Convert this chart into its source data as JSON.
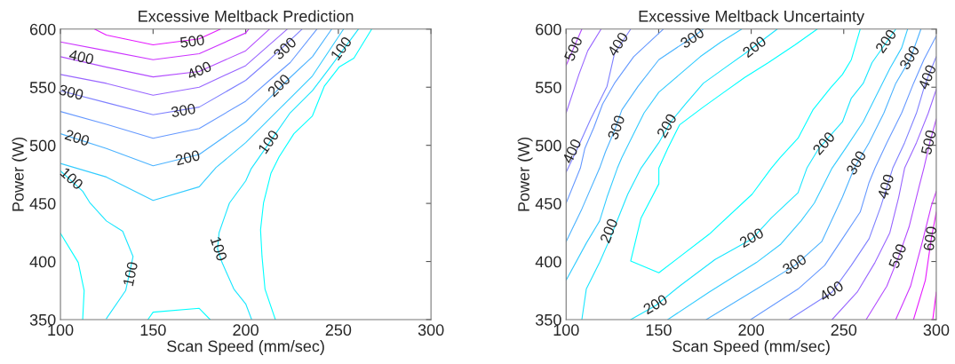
{
  "chart_data": [
    {
      "type": "line",
      "title": "Excessive Meltback Prediction",
      "xlabel": "Scan Speed (mm/sec)",
      "ylabel": "Power (W)",
      "xlim": [
        100,
        300
      ],
      "xticks": [
        100,
        150,
        200,
        250,
        300
      ],
      "ylim": [
        350,
        600
      ],
      "yticks": [
        350,
        400,
        450,
        500,
        550,
        600
      ],
      "series": [
        {
          "color": "#e619ff",
          "x": [
            118.4,
            124.8,
            150,
            174.9,
            186.4
          ],
          "values": [
            600,
            594.9,
            586.5,
            591.6,
            600
          ]
        },
        {
          "color": "#cc33ff",
          "x": [
            100,
            124.8,
            150,
            174.9,
            200,
            201.6
          ],
          "values": [
            589,
            581.4,
            573.7,
            578.8,
            596.7,
            600
          ]
        },
        {
          "color": "#b34cff",
          "x": [
            100,
            124.8,
            150,
            174.9,
            200,
            212.8
          ],
          "values": [
            576.3,
            567.3,
            558.9,
            563.5,
            581.4,
            600
          ]
        },
        {
          "color": "#9966ff",
          "x": [
            100,
            124.8,
            150,
            174.9,
            200,
            222.4
          ],
          "values": [
            561,
            553.3,
            543.1,
            550,
            568.6,
            600
          ]
        },
        {
          "color": "#7f80ff",
          "x": [
            100,
            124.8,
            150,
            174.9,
            200,
            212.8,
            230.4
          ],
          "values": [
            546.9,
            536.7,
            526.3,
            532.9,
            555.9,
            573.7,
            600
          ]
        },
        {
          "color": "#6699ff",
          "x": [
            100,
            124.8,
            150,
            174.9,
            200,
            212.8,
            224,
            238.4
          ],
          "values": [
            529.1,
            518.1,
            506.1,
            514.5,
            538,
            555.9,
            571.2,
            600
          ]
        },
        {
          "color": "#4cb3ff",
          "x": [
            100,
            124.8,
            150,
            174.9,
            200,
            212.8,
            224,
            236,
            246.4
          ],
          "values": [
            510,
            497.2,
            482.4,
            492.1,
            520.2,
            540.6,
            558.4,
            576.3,
            600
          ]
        },
        {
          "color": "#33ccff",
          "x": [
            100,
            124.8,
            150,
            174.9,
            184,
            200,
            212.8,
            224,
            236,
            252.8
          ],
          "values": [
            484.4,
            472.7,
            452.6,
            464.3,
            480.9,
            502.3,
            522.7,
            540.6,
            559.7,
            600
          ]
        },
        {
          "color": "#19e6ff",
          "x": [
            203.2,
            200,
            193.6,
            187.2,
            184.8,
            185.6,
            191.2,
            200,
            203,
            212.8,
            224,
            236,
            246,
            260.8
          ],
          "values": [
            350,
            363.5,
            376.3,
            399.2,
            410.7,
            424.7,
            450.3,
            469.4,
            480,
            502.3,
            528,
            547,
            568,
            600
          ]
        },
        {
          "color": "#19e6ff",
          "x": [
            100,
            112,
            116,
            124.8,
            133.6,
            139.2,
            135.2,
            124.8
          ],
          "values": [
            478,
            460.5,
            450.3,
            434.9,
            426,
            404.3,
            375,
            350.8
          ]
        },
        {
          "color": "#00ffff",
          "x": [
            216,
            210.4,
            208.8,
            208,
            209.6,
            213.6,
            218,
            226,
            236,
            242.4,
            250.4,
            258.4,
            268
          ],
          "values": [
            350,
            376.3,
            404.3,
            427.3,
            450.3,
            475.8,
            490,
            510,
            525.3,
            550.8,
            567.3,
            575,
            600
          ]
        },
        {
          "color": "#00ffff",
          "x": [
            100,
            109.6,
            112.8,
            112
          ],
          "values": [
            424.2,
            399.2,
            375,
            350
          ]
        },
        {
          "color": "#00ffff",
          "x": [
            147.2,
            150,
            174.9,
            180.8
          ],
          "values": [
            350,
            356.4,
            359.7,
            350
          ]
        }
      ],
      "annotations": [
        {
          "text": "500",
          "x": 171.2,
          "y": 588.5
        },
        {
          "text": "400",
          "x": 111.2,
          "y": 575
        },
        {
          "text": "400",
          "x": 175.2,
          "y": 563.5
        },
        {
          "text": "300",
          "x": 105.6,
          "y": 544.6
        },
        {
          "text": "300",
          "x": 166.4,
          "y": 529
        },
        {
          "text": "300",
          "x": 221.6,
          "y": 582.7
        },
        {
          "text": "200",
          "x": 108.8,
          "y": 505.5
        },
        {
          "text": "200",
          "x": 168.8,
          "y": 488.3
        },
        {
          "text": "200",
          "x": 218.4,
          "y": 550.8
        },
        {
          "text": "100",
          "x": 252,
          "y": 582.7
        },
        {
          "text": "100",
          "x": 212.8,
          "y": 502.3
        },
        {
          "text": "100",
          "x": 105.6,
          "y": 470.7
        },
        {
          "text": "100",
          "x": 138.4,
          "y": 389
        },
        {
          "text": "100",
          "x": 184.8,
          "y": 410.7
        }
      ]
    },
    {
      "type": "line",
      "title": "Excessive Meltback Uncertainty",
      "xlabel": "Scan Speed (mm/sec)",
      "ylabel": "Power (W)",
      "xlim": [
        100,
        300
      ],
      "xticks": [
        100,
        150,
        200,
        250,
        300
      ],
      "ylim": [
        350,
        600
      ],
      "yticks": [
        350,
        400,
        450,
        500,
        550,
        600
      ],
      "series": [
        {
          "color": "#b34cff",
          "x": [
            108.5,
            100
          ],
          "values": [
            600,
            568.6
          ]
        },
        {
          "color": "#9966ff",
          "x": [
            118.9,
            111.7,
            106.9,
            100
          ],
          "values": [
            600,
            581.4,
            561,
            527.8
          ]
        },
        {
          "color": "#7f80ff",
          "x": [
            134.9,
            126.1,
            122.1,
            113.3,
            106.1,
            100
          ],
          "values": [
            600,
            578.8,
            550.8,
            522.7,
            497.2,
            476.8
          ]
        },
        {
          "color": "#6699ff",
          "x": [
            152.5,
            136.5,
            126.1,
            119.7,
            114.9,
            110.1,
            107.7,
            100
          ],
          "values": [
            600,
            576.3,
            553.3,
            535.5,
            515,
            497.2,
            480.4,
            450.3
          ]
        },
        {
          "color": "#4cb3ff",
          "x": [
            174.1,
            169.3,
            150.1,
            138.9,
            130.1,
            126.1,
            121.3,
            118.1,
            108.5,
            100
          ],
          "values": [
            600,
            594.1,
            573.7,
            550.8,
            530.4,
            512.5,
            494.6,
            480.4,
            445.2,
            417.1
          ]
        },
        {
          "color": "#33ccff",
          "x": [
            194.9,
            183.7,
            172.5,
            161.3,
            150.1,
            142.1,
            135.7,
            130.1,
            127.7,
            122.1,
            118.1,
            110.9,
            100
          ],
          "values": [
            600,
            589,
            576.3,
            561,
            545.7,
            527.8,
            507.4,
            489.5,
            480.4,
            455.4,
            434.9,
            415.8,
            383.9
          ]
        },
        {
          "color": "#19e6ff",
          "x": [
            214.1,
            196.5,
            185.3,
            174.1,
            164.5,
            156.5,
            150.1,
            140.5,
            133.3,
            128.5,
            123.7,
            118.1,
            110.9,
            108.5
          ],
          "values": [
            600,
            578.8,
            566.1,
            553.3,
            535.5,
            520.2,
            502.3,
            480.4,
            457.9,
            438.8,
            419.6,
            399.2,
            376.3,
            350
          ]
        },
        {
          "color": "#00ffff",
          "x": [
            235.7,
            223.7,
            209.3,
            196.5,
            185.3,
            174.1,
            161.3,
            154.9,
            150.1,
            150.1,
            140.5,
            134.9,
            150.1,
            177.3,
            200.5,
            210.9,
            215.7,
            225.3,
            233.3,
            242.9,
            249.3,
            254.1,
            258.9
          ],
          "values": [
            600,
            586.5,
            571.2,
            558.4,
            545.7,
            532.9,
            517.6,
            497.2,
            480.4,
            466.8,
            437.5,
            400.5,
            390.3,
            423.5,
            457.9,
            480.4,
            489.5,
            506.1,
            530.4,
            549.5,
            561,
            573.7,
            600
          ]
        },
        {
          "color": "#19e6ff",
          "x": [
            134.9,
            148.5,
            161.3,
            180.5,
            200.5,
            210.9,
            225.3,
            230.1,
            236.5,
            249.3,
            254.1,
            260.5,
            265.3,
            278.1
          ],
          "values": [
            350,
            362.2,
            378.8,
            401.8,
            419.6,
            437.5,
            459.2,
            480.4,
            497.2,
            520.2,
            540.6,
            553.3,
            571.2,
            600
          ]
        },
        {
          "color": "#33ccff",
          "x": [
            154.9,
            177.3,
            202.9,
            215.7,
            226.9,
            234.1,
            243.7,
            250.9,
            260.5,
            266.9,
            274.9,
            281.3,
            284.5
          ],
          "values": [
            350,
            373.7,
            399.2,
            414.5,
            434.9,
            450.3,
            480.4,
            497.2,
            520.2,
            540.6,
            566.1,
            583.9,
            600
          ]
        },
        {
          "color": "#4cb3ff",
          "x": [
            175.7,
            202.9,
            223.7,
            238.1,
            249.3,
            255.7,
            263.7,
            271.7,
            278.1,
            286.1,
            291.7
          ],
          "values": [
            350,
            376.3,
            396.7,
            417.1,
            455.4,
            480.4,
            502.3,
            527.8,
            553.3,
            575,
            600
          ]
        },
        {
          "color": "#6699ff",
          "x": [
            199.7,
            225.3,
            239.7,
            249.3,
            258.9,
            263.7,
            266.9,
            273.3,
            281.3,
            287.7,
            293.3,
            300
          ],
          "values": [
            350,
            376.3,
            396.7,
            419.6,
            442.6,
            468.1,
            480.4,
            502.3,
            527.8,
            553.3,
            573.7,
            594.1
          ]
        },
        {
          "color": "#7f80ff",
          "x": [
            220.5,
            243.7,
            254.1,
            263.7,
            270.1,
            276.5,
            282.9,
            289.3,
            294.1,
            300
          ],
          "values": [
            350,
            373.7,
            396.7,
            419.6,
            447.7,
            480.4,
            502.3,
            527.8,
            553.3,
            576.3
          ]
        },
        {
          "color": "#9966ff",
          "x": [
            243.7,
            257.3,
            266.9,
            274.9,
            279.7,
            282.9,
            289.3,
            295.7,
            300
          ],
          "values": [
            350,
            373.7,
            399.2,
            424.7,
            455.4,
            480.4,
            502.3,
            527.8,
            548.2
          ]
        },
        {
          "color": "#b34cff",
          "x": [
            262.1,
            273.3,
            279.7,
            285.3,
            290.9,
            293.3,
            296.5,
            300
          ],
          "values": [
            350,
            378.8,
            404.3,
            429.8,
            465.6,
            480.4,
            502.3,
            522.7
          ]
        },
        {
          "color": "#cc33ff",
          "x": [
            278.1,
            286.1,
            292.5,
            297.3,
            300
          ],
          "values": [
            350,
            378.8,
            417.1,
            447.7,
            460.5
          ]
        },
        {
          "color": "#e619ff",
          "x": [
            287.7,
            294.1,
            297.3,
            300
          ],
          "values": [
            350,
            383.9,
            419.6,
            442.6
          ]
        },
        {
          "color": "#ff00ff",
          "x": [
            298.1,
            300
          ],
          "values": [
            350,
            373.7
          ]
        }
      ],
      "annotations": [
        {
          "text": "500",
          "x": 104.5,
          "y": 582.7
        },
        {
          "text": "400",
          "x": 128.5,
          "y": 586.5
        },
        {
          "text": "300",
          "x": 168.5,
          "y": 591.6
        },
        {
          "text": "200",
          "x": 202.1,
          "y": 583.9
        },
        {
          "text": "300",
          "x": 127.7,
          "y": 515
        },
        {
          "text": "200",
          "x": 154.9,
          "y": 516.3
        },
        {
          "text": "400",
          "x": 103.7,
          "y": 494.6
        },
        {
          "text": "200",
          "x": 273.3,
          "y": 589
        },
        {
          "text": "300",
          "x": 286.1,
          "y": 575
        },
        {
          "text": "400",
          "x": 295.7,
          "y": 558.4
        },
        {
          "text": "500",
          "x": 296.5,
          "y": 502.3
        },
        {
          "text": "200",
          "x": 239.7,
          "y": 501
        },
        {
          "text": "300",
          "x": 257.3,
          "y": 484.4
        },
        {
          "text": "200",
          "x": 123.7,
          "y": 426
        },
        {
          "text": "400",
          "x": 273.3,
          "y": 464.3
        },
        {
          "text": "600",
          "x": 297.3,
          "y": 419.6
        },
        {
          "text": "500",
          "x": 279.7,
          "y": 404.3
        },
        {
          "text": "200",
          "x": 200.5,
          "y": 419.6
        },
        {
          "text": "300",
          "x": 223.7,
          "y": 396.7
        },
        {
          "text": "400",
          "x": 243.7,
          "y": 373.7
        },
        {
          "text": "200",
          "x": 148.5,
          "y": 362.2
        }
      ]
    }
  ]
}
